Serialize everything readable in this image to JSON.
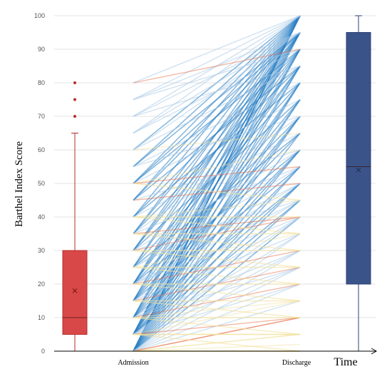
{
  "chart_data": {
    "type": "line",
    "title": "",
    "ylabel": "Barthel Index Score",
    "xlabel": "Time",
    "categories": [
      "Admission",
      "Discharge"
    ],
    "ylim": [
      0,
      100
    ],
    "yticks": [
      0,
      10,
      20,
      30,
      40,
      50,
      60,
      70,
      80,
      90,
      100
    ],
    "grid": "horizontal",
    "colors": {
      "admission_box": "#d94848",
      "admission_box_edge": "#b82d2d",
      "discharge_box": "#3a5389",
      "discharge_box_edge": "#2c4173",
      "improve_strong": "#2a7fc4",
      "improve_light": "#a9cbe8",
      "neutral": "#f2e2a0",
      "decline": "#e8714a"
    },
    "boxplots": [
      {
        "name": "Admission",
        "min": 0,
        "q1": 5,
        "median": 10,
        "q3": 30,
        "max": 65,
        "mean": 18,
        "outliers": [
          70,
          75,
          80
        ]
      },
      {
        "name": "Discharge",
        "min": 0,
        "q1": 20,
        "median": 55,
        "q3": 95,
        "max": 100,
        "mean": 54,
        "outliers": []
      }
    ],
    "pairs": [
      [
        0,
        100
      ],
      [
        0,
        100
      ],
      [
        0,
        100
      ],
      [
        0,
        95
      ],
      [
        0,
        90
      ],
      [
        0,
        85
      ],
      [
        0,
        80
      ],
      [
        0,
        75
      ],
      [
        0,
        70
      ],
      [
        0,
        65
      ],
      [
        0,
        60
      ],
      [
        0,
        55
      ],
      [
        0,
        50
      ],
      [
        0,
        45
      ],
      [
        0,
        40
      ],
      [
        0,
        35
      ],
      [
        0,
        30
      ],
      [
        0,
        25
      ],
      [
        0,
        20
      ],
      [
        0,
        15
      ],
      [
        0,
        10
      ],
      [
        0,
        5
      ],
      [
        0,
        0
      ],
      [
        0,
        0
      ],
      [
        0,
        0
      ],
      [
        0,
        5
      ],
      [
        0,
        10
      ],
      [
        0,
        2
      ],
      [
        5,
        100
      ],
      [
        5,
        100
      ],
      [
        5,
        95
      ],
      [
        5,
        90
      ],
      [
        5,
        85
      ],
      [
        5,
        80
      ],
      [
        5,
        75
      ],
      [
        5,
        70
      ],
      [
        5,
        60
      ],
      [
        5,
        55
      ],
      [
        5,
        50
      ],
      [
        5,
        45
      ],
      [
        5,
        40
      ],
      [
        5,
        35
      ],
      [
        5,
        30
      ],
      [
        5,
        25
      ],
      [
        5,
        20
      ],
      [
        5,
        15
      ],
      [
        5,
        10
      ],
      [
        5,
        5
      ],
      [
        5,
        5
      ],
      [
        5,
        0
      ],
      [
        10,
        100
      ],
      [
        10,
        95
      ],
      [
        10,
        90
      ],
      [
        10,
        80
      ],
      [
        10,
        70
      ],
      [
        10,
        60
      ],
      [
        10,
        50
      ],
      [
        10,
        40
      ],
      [
        10,
        30
      ],
      [
        10,
        25
      ],
      [
        10,
        20
      ],
      [
        10,
        15
      ],
      [
        10,
        10
      ],
      [
        10,
        5
      ],
      [
        15,
        100
      ],
      [
        15,
        95
      ],
      [
        15,
        85
      ],
      [
        15,
        75
      ],
      [
        15,
        65
      ],
      [
        15,
        55
      ],
      [
        15,
        45
      ],
      [
        15,
        35
      ],
      [
        15,
        25
      ],
      [
        15,
        15
      ],
      [
        15,
        10
      ],
      [
        20,
        100
      ],
      [
        20,
        95
      ],
      [
        20,
        90
      ],
      [
        20,
        85
      ],
      [
        20,
        70
      ],
      [
        20,
        60
      ],
      [
        20,
        50
      ],
      [
        20,
        45
      ],
      [
        20,
        40
      ],
      [
        20,
        30
      ],
      [
        20,
        20
      ],
      [
        20,
        15
      ],
      [
        25,
        100
      ],
      [
        25,
        95
      ],
      [
        25,
        80
      ],
      [
        25,
        65
      ],
      [
        25,
        55
      ],
      [
        25,
        50
      ],
      [
        25,
        35
      ],
      [
        25,
        25
      ],
      [
        25,
        20
      ],
      [
        30,
        100
      ],
      [
        30,
        95
      ],
      [
        30,
        90
      ],
      [
        30,
        75
      ],
      [
        30,
        60
      ],
      [
        30,
        45
      ],
      [
        30,
        40
      ],
      [
        30,
        30
      ],
      [
        30,
        25
      ],
      [
        35,
        100
      ],
      [
        35,
        95
      ],
      [
        35,
        85
      ],
      [
        35,
        70
      ],
      [
        35,
        55
      ],
      [
        35,
        40
      ],
      [
        35,
        35
      ],
      [
        35,
        30
      ],
      [
        40,
        100
      ],
      [
        40,
        90
      ],
      [
        40,
        80
      ],
      [
        40,
        65
      ],
      [
        40,
        45
      ],
      [
        40,
        40
      ],
      [
        40,
        35
      ],
      [
        45,
        100
      ],
      [
        45,
        95
      ],
      [
        45,
        85
      ],
      [
        45,
        60
      ],
      [
        45,
        50
      ],
      [
        50,
        100
      ],
      [
        50,
        95
      ],
      [
        50,
        90
      ],
      [
        50,
        75
      ],
      [
        50,
        60
      ],
      [
        50,
        55
      ],
      [
        50,
        45
      ],
      [
        55,
        100
      ],
      [
        55,
        95
      ],
      [
        55,
        80
      ],
      [
        55,
        70
      ],
      [
        60,
        100
      ],
      [
        60,
        95
      ],
      [
        60,
        85
      ],
      [
        60,
        65
      ],
      [
        65,
        100
      ],
      [
        65,
        95
      ],
      [
        65,
        90
      ],
      [
        70,
        100
      ],
      [
        70,
        95
      ],
      [
        70,
        85
      ],
      [
        75,
        100
      ],
      [
        75,
        95
      ],
      [
        75,
        90
      ],
      [
        80,
        100
      ],
      [
        80,
        90
      ]
    ]
  }
}
